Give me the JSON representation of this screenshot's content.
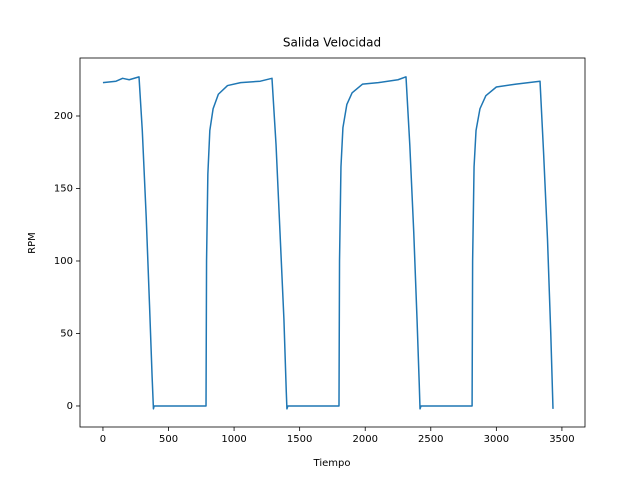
{
  "chart_data": {
    "type": "line",
    "title": "Salida Velocidad",
    "x_label": "Tiempo",
    "y_label": "RPM",
    "x": [
      0,
      100,
      150,
      200,
      275,
      300,
      330,
      355,
      375,
      385,
      390,
      786,
      790,
      800,
      815,
      840,
      880,
      950,
      1050,
      1200,
      1289,
      1320,
      1350,
      1380,
      1398,
      1403,
      1410,
      1800,
      1804,
      1815,
      1830,
      1860,
      1900,
      1980,
      2100,
      2250,
      2311,
      2340,
      2370,
      2395,
      2412,
      2418,
      2425,
      2815,
      2819,
      2830,
      2845,
      2875,
      2920,
      3000,
      3150,
      3333,
      3360,
      3390,
      3415,
      3428,
      3432
    ],
    "series": [
      {
        "name": "RPM",
        "color": "#1f77b4",
        "values": [
          223,
          224,
          226,
          225,
          227,
          190,
          130,
          70,
          20,
          -2,
          0,
          0,
          100,
          160,
          190,
          205,
          215,
          221,
          223,
          224,
          226,
          180,
          120,
          60,
          10,
          -2,
          0,
          0,
          100,
          165,
          192,
          208,
          216,
          222,
          223,
          225,
          227,
          180,
          120,
          60,
          15,
          -2,
          0,
          0,
          100,
          165,
          190,
          205,
          214,
          220,
          222,
          224,
          175,
          115,
          50,
          10,
          -2
        ]
      }
    ],
    "xlim": [
      -175,
      3676
    ],
    "ylim": [
      -14.5,
      240
    ],
    "xticks": [
      0,
      500,
      1000,
      1500,
      2000,
      2500,
      3000,
      3500
    ],
    "yticks": [
      0,
      50,
      100,
      150,
      200
    ],
    "grid": false
  }
}
